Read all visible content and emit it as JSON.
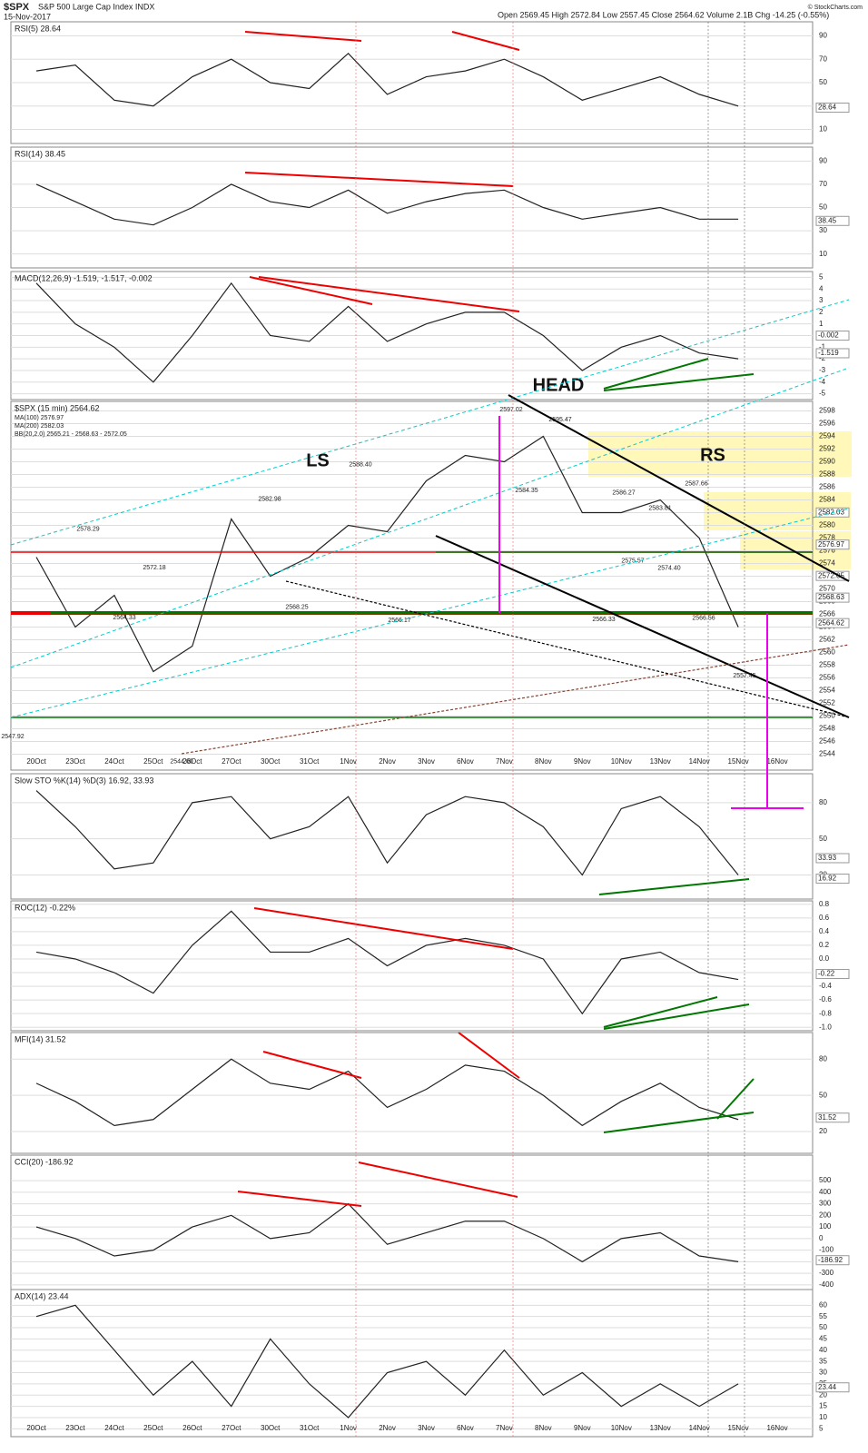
{
  "header": {
    "symbol": "$SPX",
    "name": "S&P 500 Large Cap Index INDX",
    "date": "15-Nov-2017",
    "quote": "Open 2569.45  High 2572.84  Low 2557.45  Close 2564.62  Volume 2.1B  Chg -14.25 (-0.55%)",
    "credit": "© StockCharts.com"
  },
  "chart_data": [
    {
      "type": "line",
      "title": "RSI(5) 28.64",
      "values": [
        60,
        65,
        35,
        30,
        55,
        70,
        50,
        45,
        75,
        40,
        55,
        60,
        70,
        55,
        35,
        45,
        55,
        40,
        30,
        null
      ],
      "ylim": [
        -2,
        102
      ],
      "yticks": [
        90,
        70,
        50,
        30,
        10
      ],
      "last_values": [
        28.64
      ],
      "color": "#222"
    },
    {
      "type": "line",
      "title": "RSI(14) 38.45",
      "values": [
        70,
        55,
        40,
        35,
        50,
        70,
        55,
        50,
        65,
        45,
        55,
        62,
        65,
        50,
        40,
        45,
        50,
        40,
        40,
        null
      ],
      "ylim": [
        -2,
        102
      ],
      "yticks": [
        90,
        70,
        50,
        30,
        10
      ],
      "last_values": [
        38.45
      ],
      "color": "#222"
    },
    {
      "type": "line",
      "title": "MACD(12,26,9) -1.519, -1.517, -0.002",
      "values": [
        4.5,
        1,
        -1,
        -4,
        0,
        4.5,
        0,
        -0.5,
        2.5,
        -0.5,
        1,
        2,
        2,
        0,
        -3,
        -1,
        0,
        -1.5,
        -2,
        null
      ],
      "ylim": [
        -5.5,
        5.5
      ],
      "yticks": [
        5,
        4,
        3,
        2,
        1,
        0,
        -1,
        -2,
        -3,
        -4,
        -5
      ],
      "last_values": [
        -0.002,
        -1.519
      ],
      "color": "#222"
    },
    {
      "type": "line",
      "title": "$SPX (15 min) 2564.62",
      "legend": [
        "MA(100) 2576.97",
        "MA(200) 2582.03",
        "BB(20,2.0) 2565.21 - 2568.63 - 2572.05"
      ],
      "annotations_text": [
        "LS",
        "HEAD",
        "RS"
      ],
      "categories": [
        "20Oct",
        "23Oct",
        "24Oct",
        "25Oct",
        "26Oct",
        "27Oct",
        "30Oct",
        "31Oct",
        "1Nov",
        "2Nov",
        "3Nov",
        "6Nov",
        "7Nov",
        "8Nov",
        "9Nov",
        "10Nov",
        "13Nov",
        "14Nov",
        "15Nov",
        "16Nov"
      ],
      "values": [
        2575,
        2564,
        2569,
        2557,
        2561,
        2581,
        2572,
        2575,
        2580,
        2579,
        2587,
        2591,
        2590,
        2594,
        2582,
        2582,
        2584,
        2578,
        2564,
        null
      ],
      "ylim": [
        2541.5,
        2599.5
      ],
      "yticks": [
        2598,
        2596,
        2594,
        2592,
        2590,
        2588,
        2586,
        2584,
        2582,
        2580,
        2578,
        2576,
        2574,
        2572,
        2570,
        2568,
        2566,
        2564,
        2562,
        2560,
        2558,
        2556,
        2554,
        2552,
        2550,
        2548,
        2546,
        2544
      ],
      "last_values": [
        2582.03,
        2576.97,
        2572.05,
        2568.63,
        2564.62
      ],
      "price_labels": [
        {
          "value": 2597.02,
          "label": "2597.02"
        },
        {
          "value": 2595.47,
          "label": "2595.47"
        },
        {
          "value": 2588.4,
          "label": "2588.40"
        },
        {
          "value": 2582.98,
          "label": "2582.98"
        },
        {
          "value": 2578.29,
          "label": "2578.29"
        },
        {
          "value": 2572.18,
          "label": "2572.18"
        },
        {
          "value": 2564.33,
          "label": "2564.33"
        },
        {
          "value": 2544,
          "label": "2544.00"
        },
        {
          "value": 2547.92,
          "label": "2547.92"
        },
        {
          "value": 2568.25,
          "label": "2568.25"
        },
        {
          "value": 2566.17,
          "label": "2566.17"
        },
        {
          "value": 2584.35,
          "label": "2584.35"
        },
        {
          "value": 2586.27,
          "label": "2586.27"
        },
        {
          "value": 2583.81,
          "label": "2583.81"
        },
        {
          "value": 2587.66,
          "label": "2587.66"
        },
        {
          "value": 2575.57,
          "label": "2575.57"
        },
        {
          "value": 2574.4,
          "label": "2574.40"
        },
        {
          "value": 2566.33,
          "label": "2566.33"
        },
        {
          "value": 2566.56,
          "label": "2566.56"
        },
        {
          "value": 2557.45,
          "label": "2557.45"
        }
      ],
      "color": "#222"
    },
    {
      "type": "line",
      "title": "Slow STO %K(14) %D(3) 16.92, 33.93",
      "values": [
        90,
        60,
        25,
        30,
        80,
        85,
        50,
        60,
        85,
        30,
        70,
        85,
        80,
        60,
        20,
        75,
        85,
        60,
        20,
        null
      ],
      "ylim": [
        0,
        104
      ],
      "yticks": [
        80,
        50,
        20
      ],
      "last_values": [
        33.93,
        16.92
      ],
      "color": "#222"
    },
    {
      "type": "line",
      "title": "ROC(12) -0.22%",
      "values": [
        0.1,
        0,
        -0.2,
        -0.5,
        0.2,
        0.7,
        0.1,
        0.1,
        0.3,
        -0.1,
        0.2,
        0.3,
        0.2,
        0,
        -0.8,
        0,
        0.1,
        -0.2,
        -0.3,
        null
      ],
      "ylim": [
        -1.05,
        0.85
      ],
      "yticks": [
        0.8,
        0.6,
        0.4,
        0.2,
        {
          "value": 0,
          "label": "0.0"
        },
        -0.2,
        -0.4,
        -0.6,
        -0.8,
        {
          "value": -1,
          "label": "-1.0"
        }
      ],
      "last_values": [
        -0.22
      ],
      "color": "#222"
    },
    {
      "type": "line",
      "title": "MFI(14) 31.52",
      "values": [
        60,
        45,
        25,
        30,
        55,
        80,
        60,
        55,
        70,
        40,
        55,
        75,
        70,
        50,
        25,
        45,
        60,
        40,
        30,
        null
      ],
      "ylim": [
        2,
        102
      ],
      "yticks": [
        80,
        50,
        20
      ],
      "last_values": [
        31.52
      ],
      "color": "#222"
    },
    {
      "type": "line",
      "title": "CCI(20) -186.92",
      "values": [
        100,
        0,
        -150,
        -100,
        100,
        200,
        0,
        50,
        300,
        -50,
        50,
        150,
        150,
        0,
        -200,
        0,
        50,
        -150,
        -200,
        null
      ],
      "ylim": [
        -440,
        720
      ],
      "yticks": [
        500,
        400,
        300,
        200,
        100,
        0,
        -100,
        -200,
        -300,
        -400
      ],
      "last_values": [
        -186.92
      ],
      "color": "#222"
    },
    {
      "type": "line",
      "title": "ADX(14) 23.44",
      "categories": [
        "20Oct",
        "23Oct",
        "24Oct",
        "25Oct",
        "26Oct",
        "27Oct",
        "30Oct",
        "31Oct",
        "1Nov",
        "2Nov",
        "3Nov",
        "6Nov",
        "7Nov",
        "8Nov",
        "9Nov",
        "10Nov",
        "13Nov",
        "14Nov",
        "15Nov",
        "16Nov"
      ],
      "values": [
        55,
        60,
        40,
        20,
        35,
        15,
        45,
        25,
        10,
        30,
        35,
        20,
        40,
        20,
        30,
        15,
        25,
        15,
        25,
        null
      ],
      "ylim": [
        1.5,
        67
      ],
      "yticks": [
        60,
        55,
        50,
        45,
        40,
        35,
        30,
        25,
        20,
        15,
        10,
        5
      ],
      "last_values": [
        23.44
      ],
      "color": "#222"
    }
  ]
}
